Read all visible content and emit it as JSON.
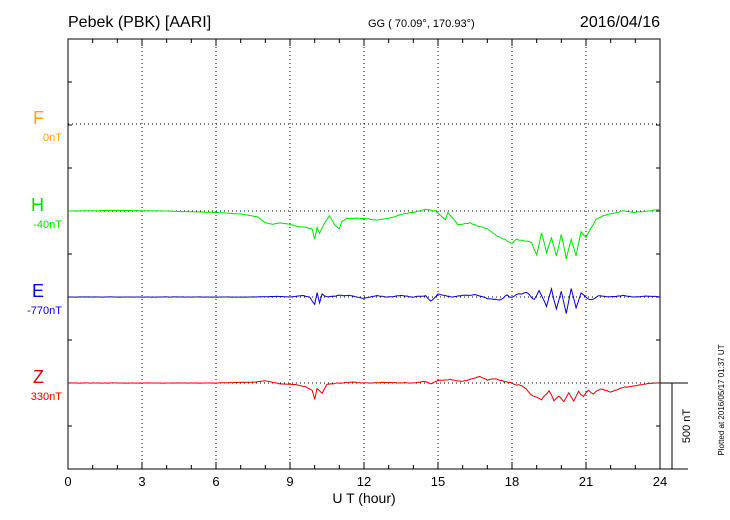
{
  "header": {
    "title": "Pebek (PBK)  [AARI]",
    "coords": "GG ( 70.09°, 170.93°)",
    "date": "2016/04/16"
  },
  "footer": {
    "plotted": "Plotted at 2016/05/17 01:37 UT",
    "scale_label": "500 nT"
  },
  "colors": {
    "F": "#FFA500",
    "H": "#00E000",
    "E": "#0000D0",
    "Z": "#E00000"
  },
  "chart_data": {
    "type": "line",
    "title": "Pebek (PBK)  [AARI]",
    "xlabel": "U T (hour)",
    "xlim": [
      0,
      24
    ],
    "xticks": [
      "0",
      "3",
      "6",
      "9",
      "12",
      "15",
      "18",
      "21",
      "24"
    ],
    "grid": true,
    "scale_bar_nT": 500,
    "series": [
      {
        "name": "F",
        "baseline_label": "0nT",
        "color": "#FFA500",
        "points": []
      },
      {
        "name": "H",
        "baseline_label": "-40nT",
        "color": "#00E000",
        "points": [
          [
            0,
            0
          ],
          [
            2,
            2
          ],
          [
            4,
            0
          ],
          [
            6,
            -5
          ],
          [
            7,
            -10
          ],
          [
            7.7,
            -20
          ],
          [
            8,
            -40
          ],
          [
            8.3,
            -45
          ],
          [
            8.6,
            -40
          ],
          [
            9,
            -45
          ],
          [
            9.3,
            -52
          ],
          [
            9.6,
            -55
          ],
          [
            9.9,
            -60
          ],
          [
            10,
            -95
          ],
          [
            10.1,
            -55
          ],
          [
            10.2,
            -75
          ],
          [
            10.4,
            -40
          ],
          [
            10.6,
            -15
          ],
          [
            10.8,
            -45
          ],
          [
            11,
            -60
          ],
          [
            11.1,
            -35
          ],
          [
            11.3,
            -25
          ],
          [
            12,
            -25
          ],
          [
            12.5,
            -30
          ],
          [
            13,
            -25
          ],
          [
            13.2,
            -20
          ],
          [
            13.6,
            -10
          ],
          [
            14,
            -5
          ],
          [
            14.5,
            5
          ],
          [
            14.9,
            0
          ],
          [
            15.1,
            -15
          ],
          [
            15.3,
            -30
          ],
          [
            15.4,
            -5
          ],
          [
            15.6,
            -25
          ],
          [
            15.8,
            -45
          ],
          [
            16,
            -45
          ],
          [
            16.3,
            -40
          ],
          [
            16.6,
            -50
          ],
          [
            17,
            -60
          ],
          [
            17.4,
            -85
          ],
          [
            17.8,
            -100
          ],
          [
            18,
            -110
          ],
          [
            18.2,
            -95
          ],
          [
            18.5,
            -100
          ],
          [
            18.8,
            -105
          ],
          [
            19,
            -150
          ],
          [
            19.2,
            -75
          ],
          [
            19.4,
            -140
          ],
          [
            19.6,
            -90
          ],
          [
            19.8,
            -150
          ],
          [
            20,
            -80
          ],
          [
            20.2,
            -160
          ],
          [
            20.4,
            -95
          ],
          [
            20.6,
            -150
          ],
          [
            20.8,
            -70
          ],
          [
            21,
            -90
          ],
          [
            21.2,
            -60
          ],
          [
            21.4,
            -30
          ],
          [
            21.7,
            -15
          ],
          [
            22,
            -10
          ],
          [
            22.5,
            0
          ],
          [
            23,
            -5
          ],
          [
            23.5,
            0
          ],
          [
            24,
            5
          ]
        ]
      },
      {
        "name": "E",
        "baseline_label": "-770nT",
        "color": "#0000D0",
        "points": [
          [
            0,
            0
          ],
          [
            3,
            0
          ],
          [
            6,
            0
          ],
          [
            7.5,
            0
          ],
          [
            8.5,
            2
          ],
          [
            9,
            0
          ],
          [
            9.5,
            5
          ],
          [
            9.8,
            0
          ],
          [
            10,
            -25
          ],
          [
            10.1,
            15
          ],
          [
            10.2,
            -20
          ],
          [
            10.3,
            10
          ],
          [
            10.5,
            0
          ],
          [
            11,
            5
          ],
          [
            11.4,
            5
          ],
          [
            12,
            -5
          ],
          [
            12.5,
            5
          ],
          [
            13,
            0
          ],
          [
            13.5,
            5
          ],
          [
            14,
            0
          ],
          [
            14.5,
            5
          ],
          [
            14.7,
            -15
          ],
          [
            15,
            10
          ],
          [
            15.3,
            5
          ],
          [
            15.6,
            0
          ],
          [
            16,
            5
          ],
          [
            16.5,
            8
          ],
          [
            17,
            -5
          ],
          [
            17.5,
            -10
          ],
          [
            17.8,
            5
          ],
          [
            18,
            0
          ],
          [
            18.3,
            10
          ],
          [
            18.6,
            15
          ],
          [
            18.9,
            -10
          ],
          [
            19.1,
            20
          ],
          [
            19.4,
            -30
          ],
          [
            19.6,
            25
          ],
          [
            19.8,
            -40
          ],
          [
            20,
            20
          ],
          [
            20.2,
            -55
          ],
          [
            20.4,
            30
          ],
          [
            20.6,
            -35
          ],
          [
            20.8,
            15
          ],
          [
            21,
            0
          ],
          [
            21.2,
            -10
          ],
          [
            21.5,
            5
          ],
          [
            22,
            0
          ],
          [
            22.5,
            5
          ],
          [
            23,
            0
          ],
          [
            23.5,
            3
          ],
          [
            24,
            0
          ]
        ]
      },
      {
        "name": "Z",
        "baseline_label": "330nT",
        "color": "#E00000",
        "points": [
          [
            0,
            0
          ],
          [
            3,
            0
          ],
          [
            6,
            0
          ],
          [
            7,
            2
          ],
          [
            7.6,
            3
          ],
          [
            8,
            8
          ],
          [
            8.2,
            4
          ],
          [
            8.6,
            -3
          ],
          [
            9.2,
            -5
          ],
          [
            9.6,
            -12
          ],
          [
            9.9,
            -25
          ],
          [
            10,
            -55
          ],
          [
            10.1,
            -18
          ],
          [
            10.3,
            -35
          ],
          [
            10.5,
            -5
          ],
          [
            11,
            0
          ],
          [
            11.5,
            3
          ],
          [
            12,
            0
          ],
          [
            13,
            2
          ],
          [
            14,
            0
          ],
          [
            14.5,
            5
          ],
          [
            14.7,
            -3
          ],
          [
            15,
            8
          ],
          [
            15.5,
            12
          ],
          [
            16,
            5
          ],
          [
            16.4,
            15
          ],
          [
            16.7,
            22
          ],
          [
            17,
            10
          ],
          [
            17.3,
            15
          ],
          [
            17.6,
            8
          ],
          [
            17.9,
            0
          ],
          [
            18.2,
            -5
          ],
          [
            18.5,
            -15
          ],
          [
            18.8,
            -40
          ],
          [
            19,
            -50
          ],
          [
            19.2,
            -55
          ],
          [
            19.5,
            -25
          ],
          [
            19.7,
            -60
          ],
          [
            19.9,
            -45
          ],
          [
            20.1,
            -65
          ],
          [
            20.3,
            -35
          ],
          [
            20.5,
            -60
          ],
          [
            20.7,
            -30
          ],
          [
            20.9,
            -45
          ],
          [
            21.1,
            -25
          ],
          [
            21.3,
            -35
          ],
          [
            21.6,
            -20
          ],
          [
            22,
            -30
          ],
          [
            22.5,
            -15
          ],
          [
            23,
            -10
          ],
          [
            23.5,
            -2
          ],
          [
            24,
            0
          ]
        ]
      }
    ]
  }
}
